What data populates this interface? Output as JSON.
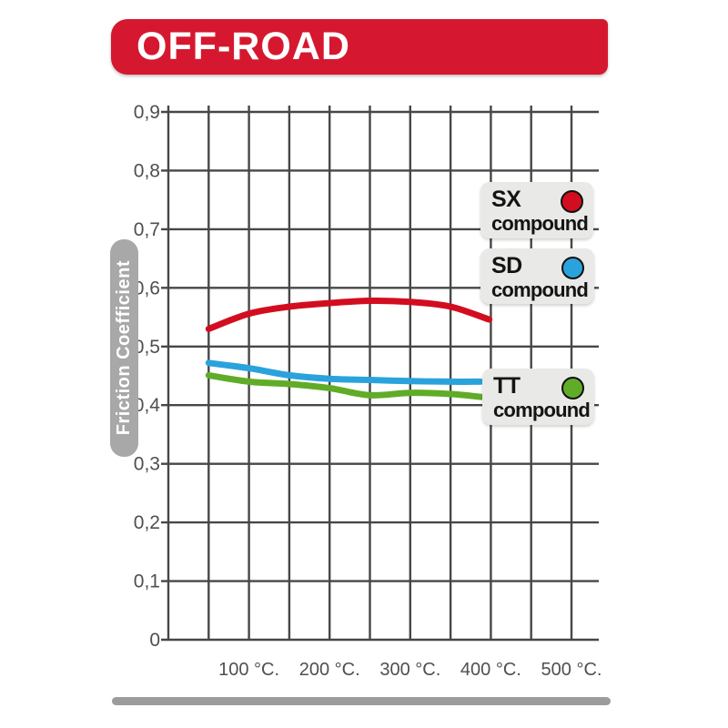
{
  "header": {
    "title": "OFF-ROAD"
  },
  "colors": {
    "banner_red": "#d5182f",
    "grid": "#474747",
    "axis_text": "#4f4f4f",
    "legend_box_bg": "#e9e9e7",
    "ylabel_pill_bg": "#a8a8a8",
    "footer_bar": "#9c9c9c"
  },
  "legend": {
    "items": [
      {
        "code": "SX",
        "word": "compound",
        "color": "#d30d20",
        "dot_name": "sx-red-dot"
      },
      {
        "code": "SD",
        "word": "compound",
        "color": "#2aa3dc",
        "dot_name": "sd-blue-dot"
      },
      {
        "code": "TT",
        "word": "compound",
        "color": "#60ac28",
        "dot_name": "tt-green-dot"
      }
    ]
  },
  "chart_data": {
    "type": "line",
    "title": "",
    "xlabel": "",
    "ylabel": "Friction Coefficient",
    "xlim": [
      0,
      500
    ],
    "ylim": [
      0,
      0.9
    ],
    "x_grid_step": 50,
    "y_grid_step": 0.1,
    "grid": true,
    "legend_position": "right-overlay",
    "x_ticks": [
      {
        "v": 100,
        "label": "100 °C."
      },
      {
        "v": 200,
        "label": "200 °C."
      },
      {
        "v": 300,
        "label": "300 °C."
      },
      {
        "v": 400,
        "label": "400 °C."
      },
      {
        "v": 500,
        "label": "500 °C."
      }
    ],
    "y_ticks": [
      {
        "v": 0.9,
        "label": "0,9"
      },
      {
        "v": 0.8,
        "label": "0,8"
      },
      {
        "v": 0.7,
        "label": "0,7"
      },
      {
        "v": 0.6,
        "label": "0,6"
      },
      {
        "v": 0.5,
        "label": "0,5"
      },
      {
        "v": 0.4,
        "label": "0,4"
      },
      {
        "v": 0.3,
        "label": "0,3"
      },
      {
        "v": 0.2,
        "label": "0,2"
      },
      {
        "v": 0.1,
        "label": "0,1"
      },
      {
        "v": 0.0,
        "label": "0"
      }
    ],
    "series": [
      {
        "name": "SX compound",
        "color": "#d30d20",
        "points": [
          [
            50,
            0.53
          ],
          [
            100,
            0.556
          ],
          [
            150,
            0.568
          ],
          [
            200,
            0.574
          ],
          [
            250,
            0.578
          ],
          [
            300,
            0.576
          ],
          [
            350,
            0.568
          ],
          [
            398,
            0.546
          ]
        ]
      },
      {
        "name": "SD compound",
        "color": "#2aa3dc",
        "points": [
          [
            50,
            0.472
          ],
          [
            100,
            0.463
          ],
          [
            150,
            0.451
          ],
          [
            200,
            0.445
          ],
          [
            250,
            0.443
          ],
          [
            300,
            0.441
          ],
          [
            350,
            0.44
          ],
          [
            387,
            0.44
          ]
        ]
      },
      {
        "name": "TT compound",
        "color": "#60ac28",
        "points": [
          [
            50,
            0.451
          ],
          [
            100,
            0.44
          ],
          [
            150,
            0.436
          ],
          [
            200,
            0.429
          ],
          [
            250,
            0.417
          ],
          [
            300,
            0.421
          ],
          [
            350,
            0.419
          ],
          [
            388,
            0.414
          ]
        ]
      }
    ]
  }
}
